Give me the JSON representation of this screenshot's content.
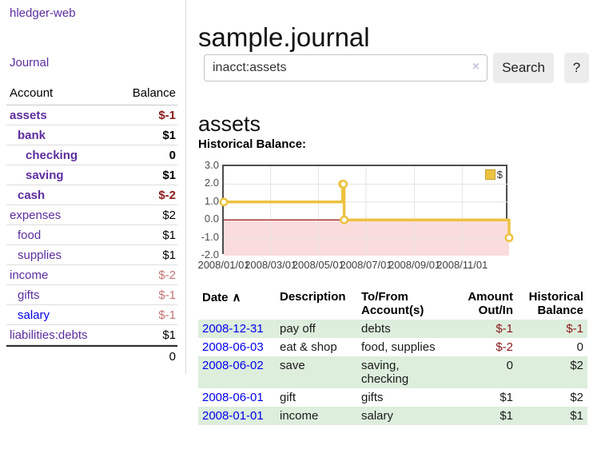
{
  "colors": {
    "purple": "#5c2d9e",
    "blue": "#0000ee",
    "negative": "#8b1a1a",
    "negative_faded": "#c27474",
    "row_stripe": "#ddeedd",
    "series_yellow": "#edc240",
    "negative_region_pink": "#fbdcdc",
    "zero_line": "#8b0000"
  },
  "sidebar": {
    "app_title": "hledger-web",
    "journal_link": "Journal",
    "accounts_table": {
      "headers": {
        "account": "Account",
        "balance": "Balance"
      },
      "rows": [
        {
          "name": "assets",
          "indent": 1,
          "bold": true,
          "balance": "$-1",
          "balance_class": "neg"
        },
        {
          "name": "bank",
          "indent": 2,
          "bold": true,
          "balance": "$1",
          "balance_class": "pos"
        },
        {
          "name": "checking",
          "indent": 3,
          "bold": true,
          "balance": "0",
          "balance_class": "pos"
        },
        {
          "name": "saving",
          "indent": 3,
          "bold": true,
          "balance": "$1",
          "balance_class": "pos"
        },
        {
          "name": "cash",
          "indent": 2,
          "bold": true,
          "balance": "$-2",
          "balance_class": "neg"
        },
        {
          "name": "expenses",
          "indent": 1,
          "bold": false,
          "balance": "$2",
          "balance_class": "pos"
        },
        {
          "name": "food",
          "indent": 2,
          "bold": false,
          "balance": "$1",
          "balance_class": "pos"
        },
        {
          "name": "supplies",
          "indent": 2,
          "bold": false,
          "balance": "$1",
          "balance_class": "pos"
        },
        {
          "name": "income",
          "indent": 1,
          "bold": false,
          "balance": "$-2",
          "balance_class": "neg-faded"
        },
        {
          "name": "gifts",
          "indent": 2,
          "bold": false,
          "balance": "$-1",
          "balance_class": "neg-faded"
        },
        {
          "name": "salary",
          "indent": 2,
          "bold": false,
          "link_color": "blue",
          "balance": "$-1",
          "balance_class": "neg-faded"
        },
        {
          "name": "liabilities:debts",
          "indent": 1,
          "bold": false,
          "balance": "$1",
          "balance_class": "pos"
        }
      ],
      "total": "0"
    }
  },
  "main": {
    "title": "sample.journal",
    "search": {
      "value": "inacct:assets",
      "clear_icon": "×",
      "button_label": "Search",
      "help_label": "?"
    },
    "account_heading": "assets",
    "chart_label": "Historical Balance:"
  },
  "chart_data": {
    "type": "line",
    "title": "Historical Balance",
    "steps": true,
    "xlim": [
      "2008-01-01",
      "2008-12-31"
    ],
    "ylim": [
      -2,
      3
    ],
    "y_ticks": [
      3.0,
      2.0,
      1.0,
      0.0,
      -1.0,
      -2.0
    ],
    "y_tick_labels": [
      "3.0",
      "2.0",
      "1.0",
      "0.0",
      "-1.0",
      "-2.0"
    ],
    "x_ticks": [
      {
        "date": "2008-01-01",
        "label": "2008/01/01"
      },
      {
        "date": "2008-03-01",
        "label": "2008/03/01"
      },
      {
        "date": "2008-05-01",
        "label": "2008/05/01"
      },
      {
        "date": "2008-07-01",
        "label": "2008/07/01"
      },
      {
        "date": "2008-09-01",
        "label": "2008/09/01"
      },
      {
        "date": "2008-11-01",
        "label": "2008/11/01"
      }
    ],
    "series": [
      {
        "name": "$",
        "color": "#edc240",
        "points": [
          [
            "2008-01-01",
            1
          ],
          [
            "2008-06-01",
            2
          ],
          [
            "2008-06-02",
            2
          ],
          [
            "2008-06-03",
            0
          ],
          [
            "2008-12-31",
            -1
          ]
        ]
      }
    ],
    "legend": {
      "position": "top-right",
      "entries": [
        {
          "label": "$",
          "color": "#edc240"
        }
      ]
    },
    "negative_region": {
      "from": 0,
      "to": -2,
      "color": "#fbdcdc"
    },
    "zero_line_color": "#8b0000",
    "grid": true
  },
  "transactions": {
    "headers": {
      "date": "Date",
      "date_sort_icon": "∧",
      "description": "Description",
      "accounts": "To/From Account(s)",
      "amount": "Amount Out/In",
      "balance": "Historical Balance"
    },
    "rows": [
      {
        "date": "2008-12-31",
        "description": "pay off",
        "accounts": "debts",
        "amount": "$-1",
        "amount_negative": true,
        "balance": "$-1",
        "balance_negative": true
      },
      {
        "date": "2008-06-03",
        "description": "eat & shop",
        "accounts": "food, supplies",
        "amount": "$-2",
        "amount_negative": true,
        "balance": "0",
        "balance_negative": false
      },
      {
        "date": "2008-06-02",
        "description": "save",
        "accounts": "saving, checking",
        "amount": "0",
        "amount_negative": false,
        "balance": "$2",
        "balance_negative": false
      },
      {
        "date": "2008-06-01",
        "description": "gift",
        "accounts": "gifts",
        "amount": "$1",
        "amount_negative": false,
        "balance": "$2",
        "balance_negative": false
      },
      {
        "date": "2008-01-01",
        "description": "income",
        "accounts": "salary",
        "amount": "$1",
        "amount_negative": false,
        "balance": "$1",
        "balance_negative": false
      }
    ]
  }
}
